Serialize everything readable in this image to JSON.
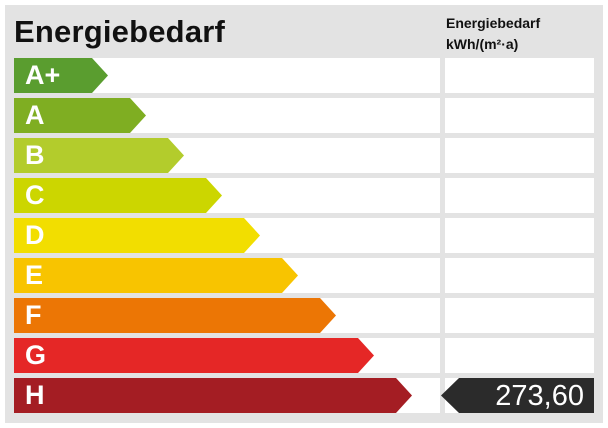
{
  "title": "Energiebedarf",
  "column_header": {
    "line1": "Energiebedarf",
    "line2": "kWh/(m²·a)"
  },
  "classes": [
    {
      "label": "A+",
      "color": "#5a9d2f"
    },
    {
      "label": "A",
      "color": "#7fae22"
    },
    {
      "label": "B",
      "color": "#b3cc2c"
    },
    {
      "label": "C",
      "color": "#ccd600"
    },
    {
      "label": "D",
      "color": "#f2de00"
    },
    {
      "label": "E",
      "color": "#f8c400"
    },
    {
      "label": "F",
      "color": "#ec7605"
    },
    {
      "label": "G",
      "color": "#e52726"
    },
    {
      "label": "H",
      "color": "#a41d23"
    }
  ],
  "value": {
    "text": "273,60",
    "class_index": 8
  }
}
